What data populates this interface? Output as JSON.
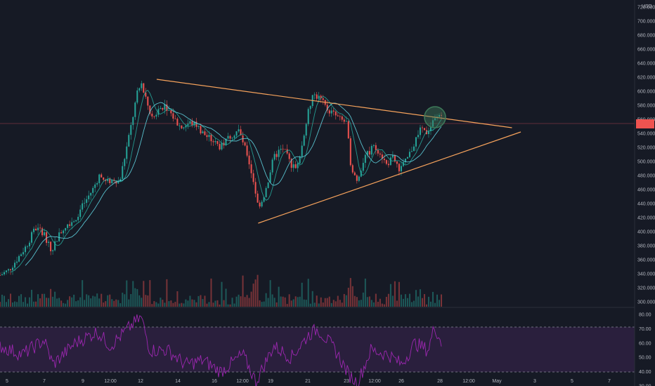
{
  "header": {
    "currency": "USD"
  },
  "price_axis": {
    "ticks": [
      "720.000",
      "700.000",
      "680.000",
      "660.000",
      "640.000",
      "620.000",
      "600.000",
      "580.000",
      "560.000",
      "540.000",
      "520.000",
      "500.000",
      "480.000",
      "460.000",
      "440.000",
      "420.000",
      "400.000",
      "380.000",
      "360.000",
      "340.000",
      "320.000",
      "300.000"
    ],
    "current_price_badge": ""
  },
  "rsi_axis": {
    "ticks": [
      "80.00",
      "70.00",
      "60.00",
      "50.00",
      "40.00",
      "30.00"
    ]
  },
  "time_axis": {
    "ticks": [
      "5",
      "7",
      "9",
      "12:00",
      "12",
      "14",
      "16",
      "12:00",
      "19",
      "21",
      "23",
      "12:00",
      "26",
      "28",
      "12:00",
      "May",
      "3",
      "5",
      "7"
    ]
  },
  "colors": {
    "background": "#161a25",
    "bull": "#26a69a",
    "bear": "#ef5350",
    "trendline": "#f7a35c",
    "ma_fast": "#26a69a",
    "ma_slow": "#5fd3e0",
    "rsi_line": "#9c27b0",
    "rsi_band": "#2a1f3d",
    "price_line": "#7a3341",
    "highlight_circle": "#3e7b5a"
  },
  "chart_data": {
    "type": "candlestick",
    "price_range": [
      290,
      730
    ],
    "rsi_range": [
      27,
      86
    ],
    "rsi_levels": [
      70,
      30
    ],
    "current_price": 563,
    "price_path": [
      [
        0,
        338
      ],
      [
        0.02,
        345
      ],
      [
        0.04,
        362
      ],
      [
        0.06,
        380
      ],
      [
        0.08,
        405
      ],
      [
        0.1,
        398
      ],
      [
        0.115,
        372
      ],
      [
        0.13,
        392
      ],
      [
        0.15,
        410
      ],
      [
        0.17,
        418
      ],
      [
        0.19,
        440
      ],
      [
        0.21,
        460
      ],
      [
        0.225,
        480
      ],
      [
        0.24,
        470
      ],
      [
        0.26,
        475
      ],
      [
        0.27,
        470
      ],
      [
        0.28,
        498
      ],
      [
        0.3,
        560
      ],
      [
        0.31,
        595
      ],
      [
        0.32,
        610
      ],
      [
        0.33,
        590
      ],
      [
        0.345,
        560
      ],
      [
        0.36,
        575
      ],
      [
        0.375,
        580
      ],
      [
        0.39,
        565
      ],
      [
        0.41,
        548
      ],
      [
        0.43,
        555
      ],
      [
        0.445,
        552
      ],
      [
        0.46,
        540
      ],
      [
        0.48,
        530
      ],
      [
        0.5,
        520
      ],
      [
        0.52,
        535
      ],
      [
        0.54,
        545
      ],
      [
        0.56,
        510
      ],
      [
        0.575,
        470
      ],
      [
        0.585,
        435
      ],
      [
        0.6,
        455
      ],
      [
        0.62,
        505
      ],
      [
        0.64,
        520
      ],
      [
        0.66,
        495
      ],
      [
        0.67,
        490
      ],
      [
        0.685,
        525
      ],
      [
        0.7,
        575
      ],
      [
        0.71,
        595
      ],
      [
        0.725,
        590
      ],
      [
        0.74,
        575
      ],
      [
        0.755,
        568
      ],
      [
        0.77,
        560
      ],
      [
        0.785,
        555
      ],
      [
        0.795,
        495
      ],
      [
        0.81,
        470
      ],
      [
        0.825,
        505
      ],
      [
        0.845,
        520
      ],
      [
        0.86,
        515
      ],
      [
        0.875,
        495
      ],
      [
        0.89,
        505
      ],
      [
        0.905,
        490
      ],
      [
        0.92,
        500
      ],
      [
        0.935,
        520
      ],
      [
        0.95,
        545
      ],
      [
        0.965,
        540
      ],
      [
        0.98,
        555
      ],
      [
        1.0,
        570
      ]
    ],
    "rsi_path": [
      [
        0,
        58
      ],
      [
        0.05,
        52
      ],
      [
        0.1,
        62
      ],
      [
        0.12,
        45
      ],
      [
        0.17,
        60
      ],
      [
        0.22,
        68
      ],
      [
        0.25,
        58
      ],
      [
        0.3,
        73
      ],
      [
        0.32,
        78
      ],
      [
        0.34,
        55
      ],
      [
        0.38,
        55
      ],
      [
        0.42,
        45
      ],
      [
        0.46,
        48
      ],
      [
        0.5,
        40
      ],
      [
        0.55,
        52
      ],
      [
        0.58,
        33
      ],
      [
        0.62,
        58
      ],
      [
        0.66,
        50
      ],
      [
        0.7,
        66
      ],
      [
        0.72,
        70
      ],
      [
        0.76,
        55
      ],
      [
        0.79,
        38
      ],
      [
        0.81,
        32
      ],
      [
        0.84,
        55
      ],
      [
        0.88,
        52
      ],
      [
        0.91,
        45
      ],
      [
        0.94,
        60
      ],
      [
        0.97,
        55
      ],
      [
        0.985,
        72
      ],
      [
        1.0,
        60
      ]
    ],
    "trendlines": [
      {
        "from": [
          0.355,
          617
        ],
        "to": [
          1.16,
          548
        ]
      },
      {
        "from": [
          0.585,
          412
        ],
        "to": [
          1.18,
          542
        ]
      }
    ],
    "grid": false,
    "legend": "none"
  }
}
